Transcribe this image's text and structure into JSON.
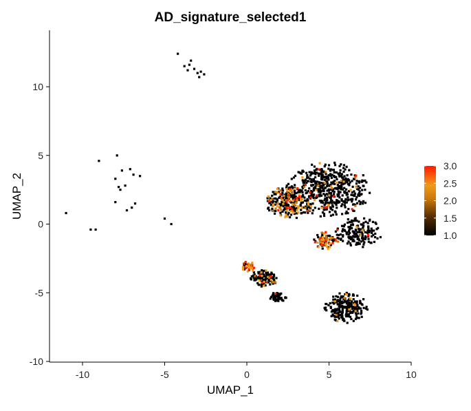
{
  "chart_data": {
    "type": "scatter",
    "title": "AD_signature_selected1",
    "xlabel": "UMAP_1",
    "ylabel": "UMAP_2",
    "xlim": [
      -12,
      10
    ],
    "ylim": [
      -10.2,
      14
    ],
    "x_ticks": [
      -10,
      -5,
      0,
      5,
      10
    ],
    "y_ticks": [
      -10,
      -5,
      0,
      5,
      10
    ],
    "grid": false,
    "legend": {
      "placement": "right",
      "type": "colorbar",
      "range": [
        1.0,
        3.0
      ],
      "ticks": [
        "1.0",
        "1.5",
        "2.0",
        "2.5",
        "3.0"
      ]
    },
    "colors": {
      "low": "#000000",
      "mid_dark": "#5a3000",
      "mid": "#c8780a",
      "high_mid": "#f09a1a",
      "high": "#ff1a00"
    },
    "clusters": [
      {
        "x": 5.0,
        "y": 2.5,
        "sx": 2.3,
        "sy": 1.8,
        "n": 520,
        "hot": 0.05
      },
      {
        "x": 2.6,
        "y": 1.6,
        "sx": 1.3,
        "sy": 1.1,
        "n": 260,
        "hot": 0.3
      },
      {
        "x": 6.8,
        "y": -0.6,
        "sx": 1.3,
        "sy": 1.0,
        "n": 160,
        "hot": 0.03
      },
      {
        "x": 4.8,
        "y": -1.2,
        "sx": 0.7,
        "sy": 0.55,
        "n": 90,
        "hot": 0.45
      },
      {
        "x": 1.1,
        "y": -3.9,
        "sx": 0.8,
        "sy": 0.6,
        "n": 120,
        "hot": 0.08
      },
      {
        "x": 0.1,
        "y": -3.1,
        "sx": 0.35,
        "sy": 0.35,
        "n": 40,
        "hot": 0.75
      },
      {
        "x": 1.9,
        "y": -5.3,
        "sx": 0.5,
        "sy": 0.35,
        "n": 50,
        "hot": 0.02
      },
      {
        "x": 6.0,
        "y": -6.1,
        "sx": 1.25,
        "sy": 1.0,
        "n": 230,
        "hot": 0.04
      }
    ],
    "sparse_points": [
      [
        -11,
        0.8
      ],
      [
        -9.5,
        -0.4
      ],
      [
        -9.2,
        -0.4
      ],
      [
        -9.0,
        4.6
      ],
      [
        -7.9,
        5.0
      ],
      [
        -8.0,
        3.3
      ],
      [
        -7.7,
        2.5
      ],
      [
        -7.6,
        3.9
      ],
      [
        -7.3,
        1.0
      ],
      [
        -7.1,
        4.0
      ],
      [
        -6.9,
        3.6
      ],
      [
        -6.5,
        3.5
      ],
      [
        -8.0,
        1.6
      ],
      [
        -6.8,
        1.5
      ],
      [
        -5.0,
        0.4
      ],
      [
        -4.6,
        0.0
      ],
      [
        -4.2,
        12.4
      ],
      [
        -3.8,
        11.5
      ],
      [
        -3.5,
        11.6
      ],
      [
        -3.2,
        11.3
      ],
      [
        -3.0,
        11.0
      ],
      [
        -2.8,
        11.1
      ],
      [
        -2.6,
        10.9
      ],
      [
        -3.4,
        11.9
      ],
      [
        -2.9,
        10.7
      ],
      [
        -3.6,
        11.2
      ],
      [
        -7.4,
        2.8
      ],
      [
        -7.8,
        2.7
      ],
      [
        -7.0,
        1.2
      ]
    ]
  }
}
